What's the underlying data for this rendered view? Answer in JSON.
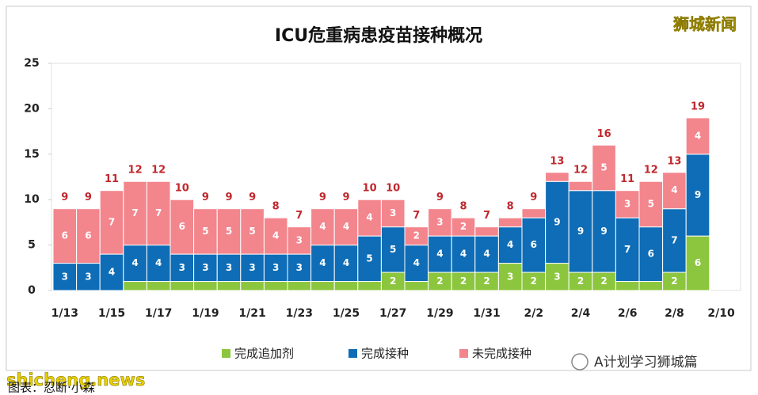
{
  "chart_data": {
    "type": "stacked_bar",
    "title": "ICU危重病患疫苗接种概况",
    "categories": [
      "1/13",
      null,
      "1/15",
      null,
      "1/17",
      null,
      "1/19",
      null,
      "1/21",
      null,
      "1/23",
      null,
      "1/25",
      null,
      "1/27",
      null,
      "1/29",
      null,
      "1/31",
      null,
      "2/2",
      null,
      "2/4",
      null,
      "2/6",
      null,
      "2/8",
      null,
      "2/10"
    ],
    "series": [
      {
        "name": "完成追加剂",
        "color": "#8cc63e",
        "values": [
          0,
          0,
          0,
          1,
          1,
          1,
          1,
          1,
          1,
          1,
          1,
          1,
          1,
          1,
          2,
          1,
          2,
          2,
          2,
          3,
          2,
          3,
          2,
          2,
          1,
          1,
          2,
          6,
          null
        ]
      },
      {
        "name": "完成接种",
        "color": "#0e6db6",
        "values": [
          3,
          3,
          4,
          4,
          4,
          3,
          3,
          3,
          3,
          3,
          3,
          4,
          4,
          5,
          5,
          4,
          4,
          4,
          4,
          4,
          6,
          9,
          9,
          9,
          7,
          6,
          7,
          9,
          null
        ]
      },
      {
        "name": "未完成接种",
        "color": "#f3858d",
        "values": [
          6,
          6,
          7,
          7,
          7,
          6,
          5,
          5,
          5,
          4,
          3,
          4,
          4,
          4,
          3,
          2,
          3,
          2,
          1,
          1,
          1,
          1,
          1,
          5,
          3,
          5,
          4,
          4,
          null
        ]
      }
    ],
    "totals": [
      9,
      9,
      11,
      12,
      12,
      10,
      9,
      9,
      9,
      8,
      7,
      9,
      9,
      10,
      10,
      7,
      9,
      8,
      7,
      8,
      9,
      13,
      12,
      16,
      11,
      12,
      13,
      19,
      null
    ],
    "ylim": [
      0,
      25
    ],
    "yticks": [
      0,
      5,
      10,
      15,
      20,
      25
    ],
    "grid": false
  },
  "watermarks": {
    "top_right": "狮城新闻",
    "bottom_left": "shicheng.news",
    "credit": "图表：忍断·小森",
    "wechat": "A计划学习狮城篇"
  }
}
